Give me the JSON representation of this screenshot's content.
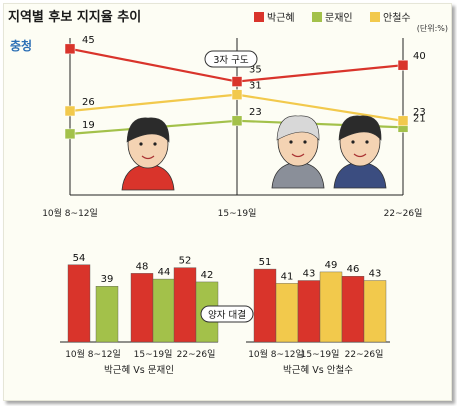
{
  "title": "지역별 후보 지지율 추이",
  "region": "충청",
  "unit": "(단위:%)",
  "legend": [
    {
      "name": "박근혜",
      "color": "#d9342b"
    },
    {
      "name": "문재인",
      "color": "#a3c14a"
    },
    {
      "name": "안철수",
      "color": "#f2c94c"
    }
  ],
  "colors": {
    "park": "#d9342b",
    "moon": "#a3c14a",
    "ahn": "#f2c94c"
  },
  "chart_data": [
    {
      "type": "line",
      "categories": [
        "10월 8~12일",
        "15~19일",
        "22~26일"
      ],
      "series": [
        {
          "name": "박근혜",
          "values": [
            45,
            35,
            40
          ]
        },
        {
          "name": "문재인",
          "values": [
            19,
            23,
            21
          ]
        },
        {
          "name": "안철수",
          "values": [
            26,
            31,
            23
          ]
        }
      ],
      "annotation": "3자 구도",
      "ylim": [
        0,
        50
      ]
    },
    {
      "type": "bar",
      "annotation": "양자 대결",
      "groups": [
        {
          "label": "박근혜 Vs 문재인",
          "categories": [
            "10월 8~12일",
            "15~19일",
            "22~26일"
          ],
          "series": [
            {
              "name": "박근혜",
              "values": [
                54,
                48,
                52
              ]
            },
            {
              "name": "문재인",
              "values": [
                39,
                44,
                42
              ]
            }
          ]
        },
        {
          "label": "박근혜 Vs 안철수",
          "categories": [
            "10월 8~12일",
            "15~19일",
            "22~26일"
          ],
          "series": [
            {
              "name": "박근혜",
              "values": [
                51,
                43,
                46
              ]
            },
            {
              "name": "안철수",
              "values": [
                41,
                49,
                43
              ]
            }
          ]
        }
      ]
    }
  ]
}
